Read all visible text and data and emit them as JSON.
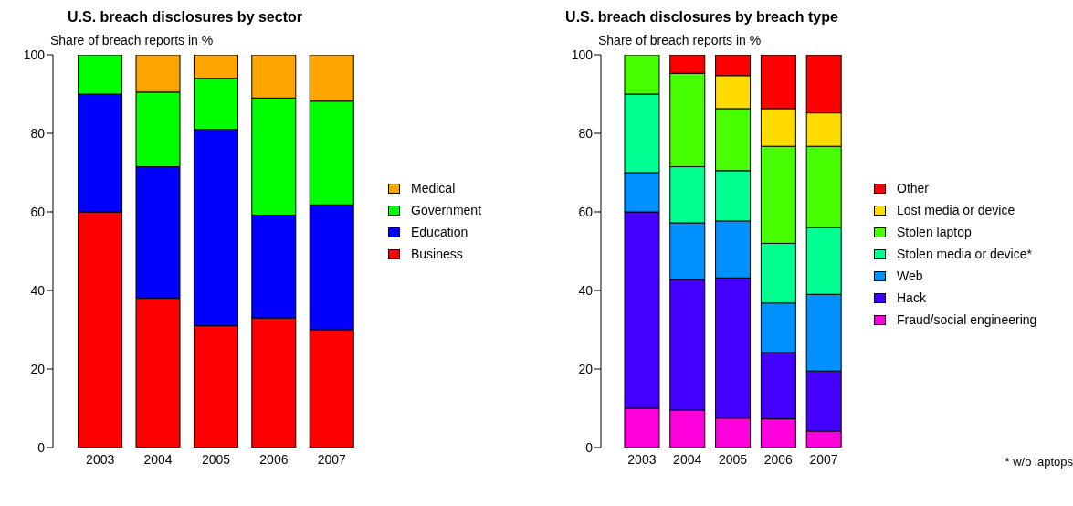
{
  "chart_data": [
    {
      "type": "bar",
      "title": "U.S. breach disclosures by sector",
      "ylabel": "Share of breach reports in %",
      "categories": [
        "2003",
        "2004",
        "2005",
        "2006",
        "2007"
      ],
      "stacked": true,
      "legend": "right",
      "ylim": [
        0,
        100
      ],
      "yticks": [
        0,
        20,
        40,
        60,
        80,
        100
      ],
      "series": [
        {
          "name": "Business",
          "color": "#ff0000",
          "values": [
            60,
            38,
            31,
            33,
            30
          ]
        },
        {
          "name": "Education",
          "color": "#0000ff",
          "values": [
            30,
            33.5,
            50,
            26.2,
            31.8
          ]
        },
        {
          "name": "Government",
          "color": "#00ff00",
          "values": [
            10,
            19,
            13,
            29.8,
            26.4
          ]
        },
        {
          "name": "Medical",
          "color": "#ffa500",
          "values": [
            0,
            9.5,
            6,
            11,
            11.8
          ]
        }
      ]
    },
    {
      "type": "bar",
      "title": "U.S. breach disclosures by breach type",
      "ylabel": "Share of breach reports in %",
      "categories": [
        "2003",
        "2004",
        "2005",
        "2006",
        "2007"
      ],
      "stacked": true,
      "legend": "right",
      "ylim": [
        0,
        100
      ],
      "yticks": [
        0,
        20,
        40,
        60,
        80,
        100
      ],
      "annotations": [
        "* w/o laptops"
      ],
      "series": [
        {
          "name": "Fraud/social engineering",
          "color": "#ff00dd",
          "values": [
            10,
            9.5,
            7.5,
            7.3,
            4.2
          ]
        },
        {
          "name": "Hack",
          "color": "#4400ff",
          "values": [
            50,
            33.3,
            35.7,
            16.9,
            15.3
          ]
        },
        {
          "name": "Web",
          "color": "#0091ff",
          "values": [
            10,
            14.4,
            14.5,
            12.6,
            19.5
          ]
        },
        {
          "name": "Stolen media or device*",
          "color": "#00ff91",
          "values": [
            20,
            14.3,
            12.8,
            15.2,
            17
          ]
        },
        {
          "name": "Stolen laptop",
          "color": "#48ff00",
          "values": [
            10,
            23.8,
            15.8,
            24.7,
            20.7
          ]
        },
        {
          "name": "Lost media or device",
          "color": "#ffdb00",
          "values": [
            0,
            0,
            8.4,
            9.6,
            8.5
          ]
        },
        {
          "name": "Other",
          "color": "#ff0000",
          "values": [
            0,
            4.7,
            5.3,
            13.7,
            14.8
          ]
        }
      ]
    }
  ]
}
